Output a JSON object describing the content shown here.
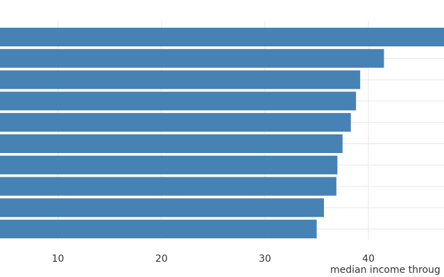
{
  "chart_data": {
    "type": "barh",
    "x_label": "median income throug",
    "values": [
      48,
      41.5,
      39.2,
      38.8,
      38.3,
      37.5,
      37.0,
      36.9,
      35.7,
      35.0
    ],
    "color": "#4682b4",
    "xlim": [
      4.4,
      47.3
    ],
    "xticks": [
      10,
      20,
      30,
      40
    ],
    "grid": true
  }
}
